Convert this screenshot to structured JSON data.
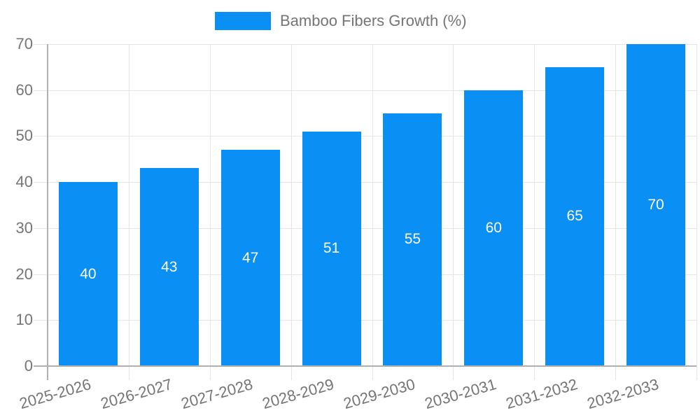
{
  "legend": {
    "label": "Bamboo Fibers Growth (%)"
  },
  "chart_data": {
    "type": "bar",
    "title": "Bamboo Fibers Growth (%)",
    "categories": [
      "2025-2026",
      "2026-2027",
      "2027-2028",
      "2028-2029",
      "2029-2030",
      "2030-2031",
      "2031-2032",
      "2032-2033"
    ],
    "values": [
      40,
      43,
      47,
      51,
      55,
      60,
      65,
      70
    ],
    "xlabel": "",
    "ylabel": "",
    "ylim": [
      0,
      70
    ],
    "yticks": [
      0,
      10,
      20,
      30,
      40,
      50,
      60,
      70
    ],
    "grid": true,
    "legend_position": "top-center",
    "value_label_position": "inside-center",
    "colors": {
      "bar": "#0a90f5",
      "grid": "#e5e5e5",
      "axis": "#b0b0b0",
      "tick_text": "#757575",
      "value_text": "#ffffff",
      "background": "#ffffff"
    }
  }
}
